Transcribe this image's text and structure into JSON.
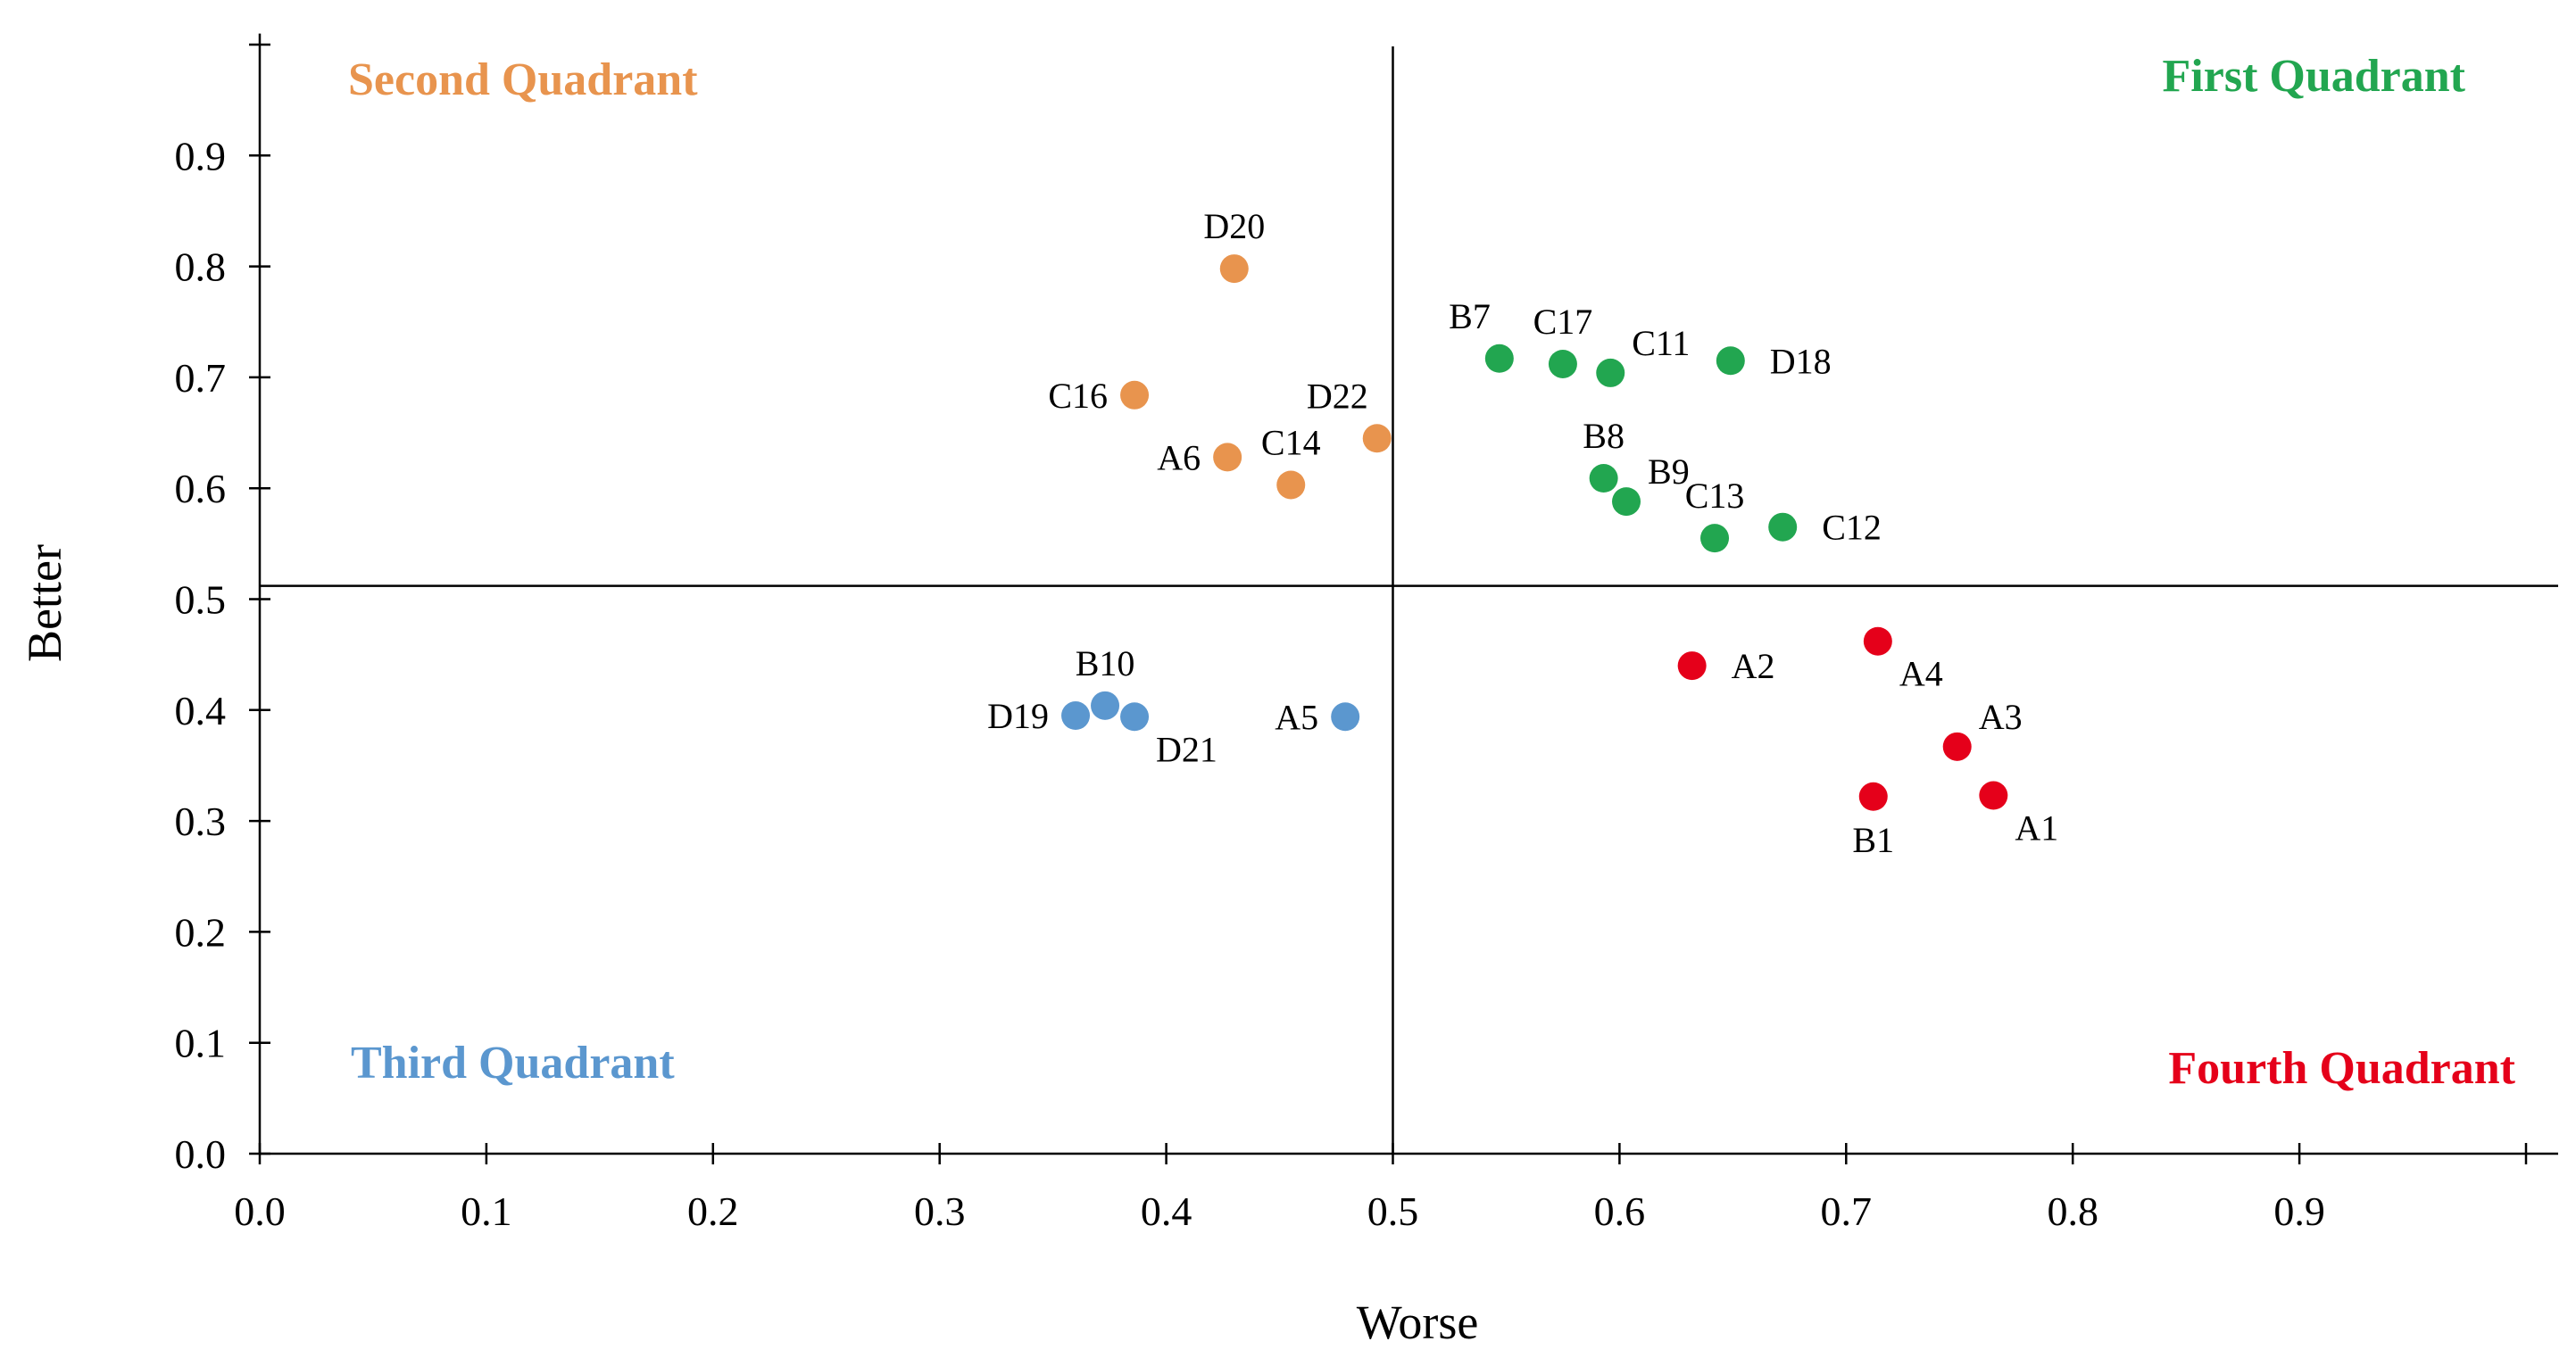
{
  "chart_data": {
    "type": "scatter",
    "title": "",
    "xlabel": "Worse",
    "ylabel": "Better",
    "xlim": [
      0,
      1.0
    ],
    "ylim": [
      0,
      1.0
    ],
    "xticks": [
      "0.0",
      "0.1",
      "0.2",
      "0.3",
      "0.4",
      "0.5",
      "0.6",
      "0.7",
      "0.8",
      "0.9"
    ],
    "yticks": [
      "0.0",
      "0.1",
      "0.2",
      "0.3",
      "0.4",
      "0.5",
      "0.6",
      "0.7",
      "0.8",
      "0.9"
    ],
    "grid": false,
    "reference_lines": {
      "x": 0.5,
      "y": 0.512
    },
    "quadrants": [
      {
        "name": "First Quadrant",
        "color": "#22A650",
        "placement": "top-right"
      },
      {
        "name": "Second Quadrant",
        "color": "#E8944E",
        "placement": "top-left"
      },
      {
        "name": "Third Quadrant",
        "color": "#5B97CF",
        "placement": "bottom-left"
      },
      {
        "name": "Fourth Quadrant",
        "color": "#E5001A",
        "placement": "bottom-right"
      }
    ],
    "series": [
      {
        "name": "First Quadrant",
        "color": "#22A650",
        "points": [
          {
            "label": "B7",
            "x": 0.547,
            "y": 0.717,
            "label_pos": "above-left"
          },
          {
            "label": "C17",
            "x": 0.575,
            "y": 0.712,
            "label_pos": "above"
          },
          {
            "label": "C11",
            "x": 0.596,
            "y": 0.704,
            "label_pos": "above-right"
          },
          {
            "label": "D18",
            "x": 0.649,
            "y": 0.715,
            "label_pos": "right"
          },
          {
            "label": "B8",
            "x": 0.593,
            "y": 0.609,
            "label_pos": "above"
          },
          {
            "label": "B9",
            "x": 0.603,
            "y": 0.588,
            "label_pos": "above-right"
          },
          {
            "label": "C13",
            "x": 0.642,
            "y": 0.555,
            "label_pos": "above"
          },
          {
            "label": "C12",
            "x": 0.672,
            "y": 0.565,
            "label_pos": "right"
          }
        ]
      },
      {
        "name": "Second Quadrant",
        "color": "#E8944E",
        "points": [
          {
            "label": "D20",
            "x": 0.43,
            "y": 0.798,
            "label_pos": "above"
          },
          {
            "label": "C16",
            "x": 0.386,
            "y": 0.684,
            "label_pos": "left"
          },
          {
            "label": "A6",
            "x": 0.427,
            "y": 0.628,
            "label_pos": "left"
          },
          {
            "label": "C14",
            "x": 0.455,
            "y": 0.603,
            "label_pos": "above"
          },
          {
            "label": "D22",
            "x": 0.493,
            "y": 0.645,
            "label_pos": "above-left"
          }
        ]
      },
      {
        "name": "Third Quadrant",
        "color": "#5B97CF",
        "points": [
          {
            "label": "B10",
            "x": 0.373,
            "y": 0.404,
            "label_pos": "above"
          },
          {
            "label": "D19",
            "x": 0.36,
            "y": 0.395,
            "label_pos": "left"
          },
          {
            "label": "D21",
            "x": 0.386,
            "y": 0.394,
            "label_pos": "below-right"
          },
          {
            "label": "A5",
            "x": 0.479,
            "y": 0.394,
            "label_pos": "left"
          }
        ]
      },
      {
        "name": "Fourth Quadrant",
        "color": "#E5001A",
        "points": [
          {
            "label": "A2",
            "x": 0.632,
            "y": 0.44,
            "label_pos": "right"
          },
          {
            "label": "A4",
            "x": 0.714,
            "y": 0.462,
            "label_pos": "below-right"
          },
          {
            "label": "A3",
            "x": 0.749,
            "y": 0.367,
            "label_pos": "above-right"
          },
          {
            "label": "B1",
            "x": 0.712,
            "y": 0.322,
            "label_pos": "below"
          },
          {
            "label": "A1",
            "x": 0.765,
            "y": 0.323,
            "label_pos": "below-right"
          }
        ]
      }
    ]
  }
}
